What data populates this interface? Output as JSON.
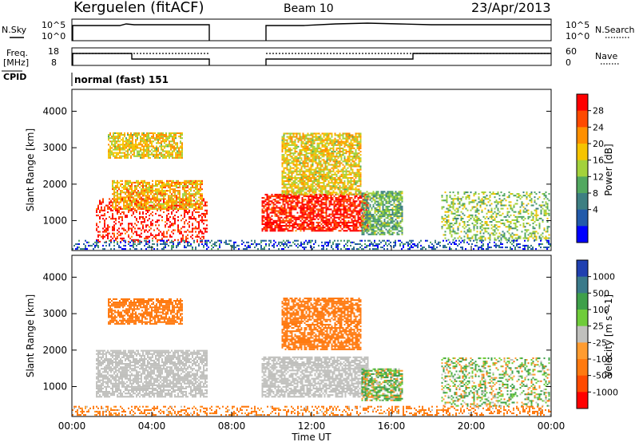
{
  "header": {
    "station": "Kerguelen (fitACF)",
    "beam": "Beam 10",
    "date": "23/Apr/2013"
  },
  "top_panels": {
    "nsky_label": "N.Sky",
    "nsearch_label": "N.Search",
    "freq_label_1": "Freq.",
    "freq_label_2": "[MHz]",
    "nave_label": "Nave",
    "cpid_label": "CPID",
    "cpid_value": "normal (fast) 151",
    "nsky_ticks": [
      "10^5",
      "10^0"
    ],
    "nsearch_ticks": [
      "10^5",
      "10^0"
    ],
    "freq_ticks": [
      "18",
      "8"
    ],
    "nave_ticks": [
      "60",
      "0"
    ]
  },
  "chart_data": [
    {
      "type": "heatmap",
      "title": "",
      "xlabel": "",
      "ylabel": "Slant Range [km]",
      "xlim": [
        0,
        24
      ],
      "ylim": [
        180,
        4600
      ],
      "y_ticks": [
        "4000",
        "3000",
        "2000",
        "1000"
      ],
      "colorbar": {
        "label": "Power [dB]",
        "ticks": [
          "28",
          "24",
          "20",
          "16",
          "12",
          "8",
          "4"
        ],
        "colors": [
          "#ff0000",
          "#ff4a00",
          "#ff9000",
          "#f6c400",
          "#a3d23c",
          "#52a860",
          "#3d7f82",
          "#225aaa",
          "#0000ff"
        ]
      },
      "regions": [
        {
          "t0": 1.2,
          "t1": 6.8,
          "r0": 400,
          "r1": 1600,
          "value": 28
        },
        {
          "t0": 2.0,
          "t1": 6.5,
          "r0": 1300,
          "r1": 2100,
          "value": 20
        },
        {
          "t0": 1.8,
          "t1": 5.5,
          "r0": 2700,
          "r1": 3400,
          "value": 18
        },
        {
          "t0": 9.5,
          "t1": 14.8,
          "r0": 700,
          "r1": 1700,
          "value": 28
        },
        {
          "t0": 10.5,
          "t1": 14.5,
          "r0": 1700,
          "r1": 3400,
          "value": 18
        },
        {
          "t0": 14.5,
          "t1": 16.5,
          "r0": 600,
          "r1": 1800,
          "value": 12
        },
        {
          "t0": 18.5,
          "t1": 24.0,
          "r0": 450,
          "r1": 1800,
          "value": 14
        },
        {
          "t0": 0.0,
          "t1": 24.0,
          "r0": 200,
          "r1": 450,
          "value": 6
        }
      ]
    },
    {
      "type": "heatmap",
      "title": "",
      "xlabel": "Time UT",
      "ylabel": "Slant Range [km]",
      "xlim": [
        0,
        24
      ],
      "ylim": [
        180,
        4600
      ],
      "x_ticks": [
        "00:00",
        "04:00",
        "08:00",
        "12:00",
        "16:00",
        "20:00",
        "00:00"
      ],
      "y_ticks": [
        "4000",
        "3000",
        "2000",
        "1000"
      ],
      "colorbar": {
        "label": "Velocity [m s^-1]",
        "ticks": [
          "1000",
          "500",
          "100",
          "25",
          "-25",
          "-100",
          "-500",
          "-1000"
        ],
        "colors": [
          "#2040b0",
          "#3a7a8a",
          "#3ea04a",
          "#6fcc3a",
          "#c0c0bd",
          "#ff9c30",
          "#ff7a10",
          "#ff4a00",
          "#ff0000"
        ]
      },
      "regions": [
        {
          "t0": 1.2,
          "t1": 6.8,
          "r0": 700,
          "r1": 2000,
          "value": 0
        },
        {
          "t0": 1.8,
          "t1": 5.5,
          "r0": 2700,
          "r1": 3400,
          "value": -300
        },
        {
          "t0": 9.5,
          "t1": 14.8,
          "r0": 700,
          "r1": 1800,
          "value": 0
        },
        {
          "t0": 10.5,
          "t1": 14.5,
          "r0": 2000,
          "r1": 3400,
          "value": -300
        },
        {
          "t0": 14.5,
          "t1": 16.5,
          "r0": 600,
          "r1": 1500,
          "value": 80
        },
        {
          "t0": 18.5,
          "t1": 24.0,
          "r0": 450,
          "r1": 1800,
          "value": 60
        },
        {
          "t0": 0.0,
          "t1": 24.0,
          "r0": 200,
          "r1": 450,
          "value": -200
        }
      ]
    }
  ]
}
